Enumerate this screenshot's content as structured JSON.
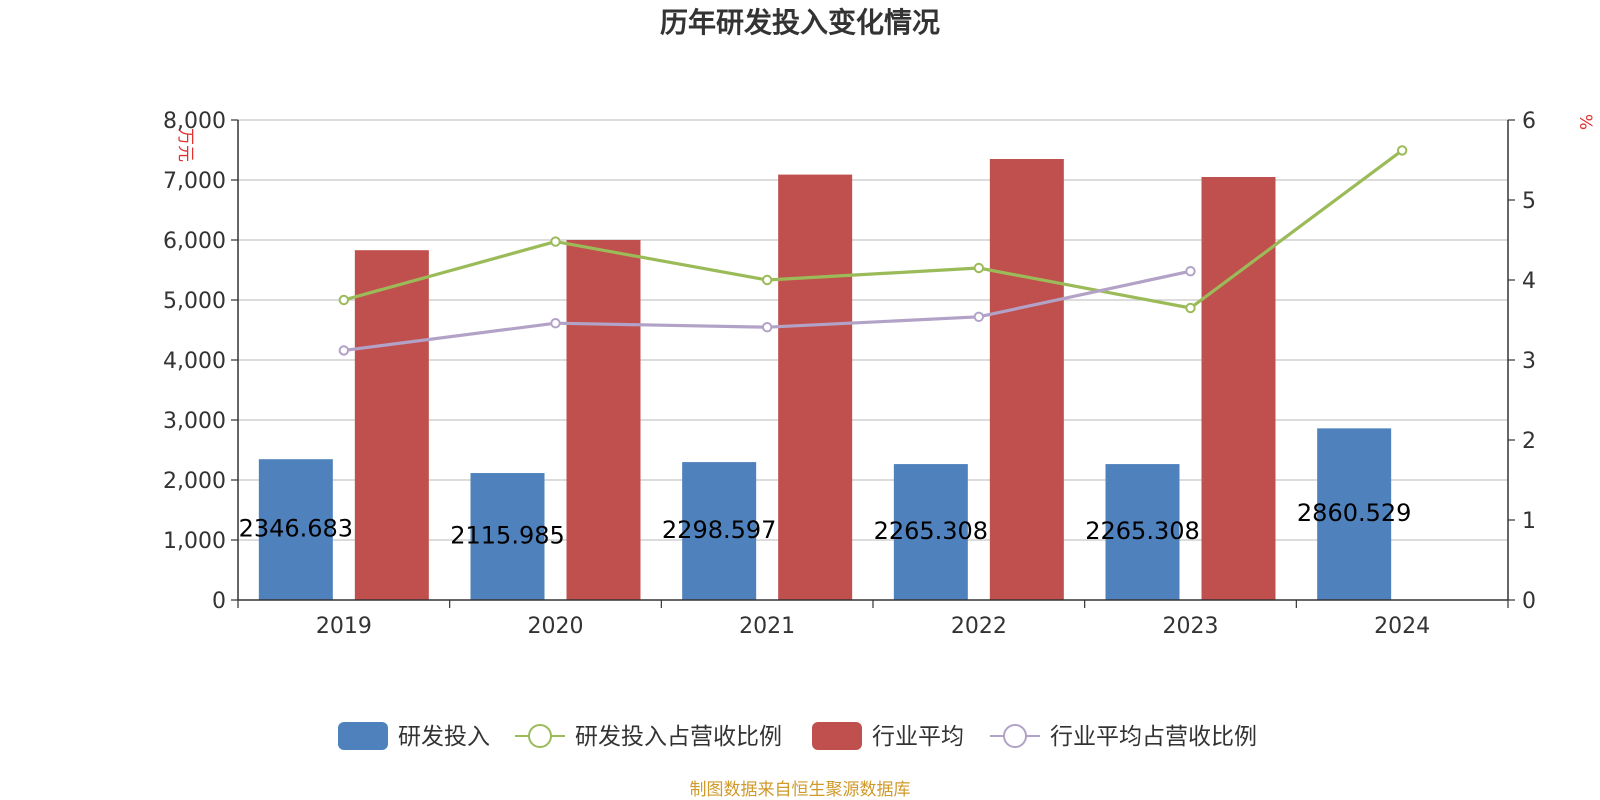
{
  "chart_data": {
    "type": "bar",
    "title": "历年研发投入变化情况",
    "categories": [
      "2019",
      "2020",
      "2021",
      "2022",
      "2023",
      "2024"
    ],
    "ylabel_left": "万元",
    "ylabel_right": "%",
    "ylim_left": [
      0,
      8000
    ],
    "ylim_right": [
      0,
      6
    ],
    "yticks_left": [
      "0",
      "1,000",
      "2,000",
      "3,000",
      "4,000",
      "5,000",
      "6,000",
      "7,000",
      "8,000"
    ],
    "yticks_right": [
      "0",
      "1",
      "2",
      "3",
      "4",
      "5",
      "6"
    ],
    "grid": true,
    "legend_position": "bottom",
    "series": [
      {
        "name": "研发投入",
        "kind": "bar",
        "axis": "left",
        "color": "#4f81bd",
        "values": [
          2346.683,
          2115.985,
          2298.597,
          2265.308,
          2265.308,
          2860.529
        ],
        "labels": [
          "2346.683",
          "2115.985",
          "2298.597",
          "2265.308",
          "2265.308",
          "2860.529"
        ]
      },
      {
        "name": "研发投入占营收比例",
        "kind": "line",
        "axis": "right",
        "color": "#9bbb59",
        "values": [
          3.75,
          4.48,
          4.0,
          4.15,
          3.65,
          5.62
        ]
      },
      {
        "name": "行业平均",
        "kind": "bar",
        "axis": "left",
        "color": "#c0504d",
        "values": [
          5830,
          6000,
          7090,
          7350,
          7050,
          null
        ]
      },
      {
        "name": "行业平均占营收比例",
        "kind": "line",
        "axis": "right",
        "color": "#b3a2c7",
        "values": [
          3.12,
          3.46,
          3.41,
          3.54,
          4.11,
          null
        ]
      }
    ]
  },
  "source_note": "制图数据来自恒生聚源数据库"
}
